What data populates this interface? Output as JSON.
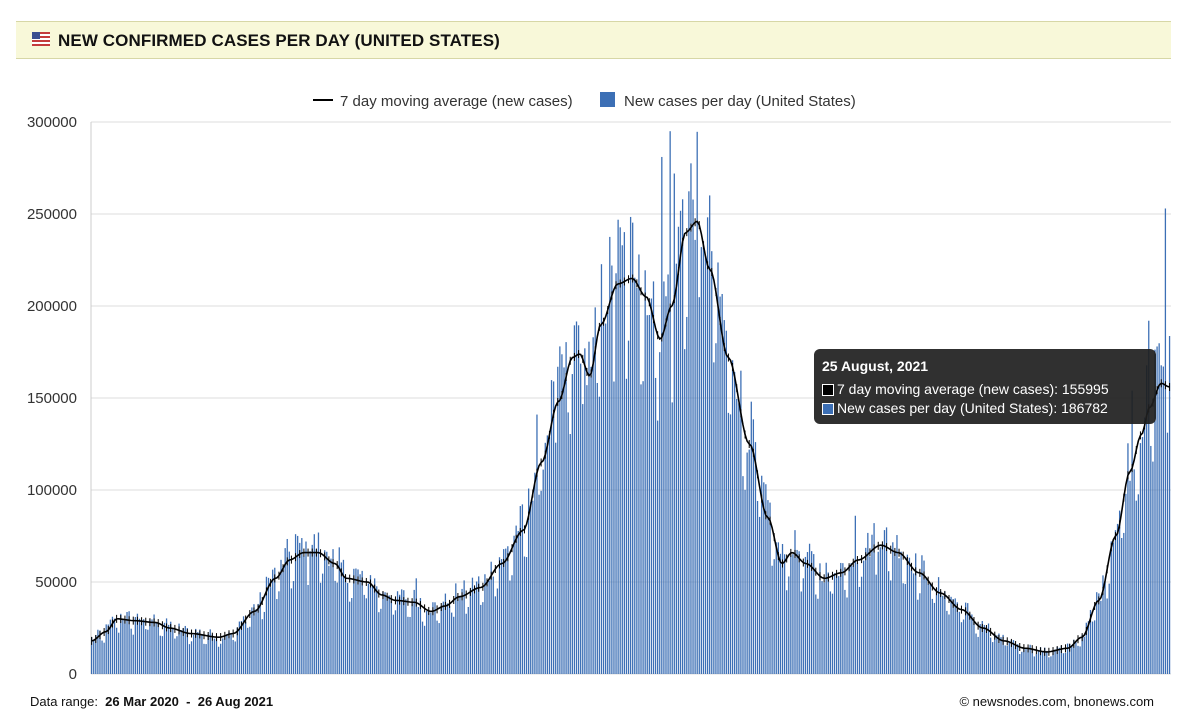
{
  "header": {
    "title": "NEW CONFIRMED CASES PER DAY (UNITED STATES)",
    "flag_icon": "us-flag-icon"
  },
  "footer": {
    "range_label": "Data range:",
    "range_start": "26 Mar 2020",
    "range_sep": "-",
    "range_end": "26 Aug 2021",
    "copyright": "© newsnodes.com, bnonews.com"
  },
  "tooltip": {
    "date": "25 August, 2021",
    "avg_label": "7 day moving average (new cases): 155995",
    "daily_label": "New cases per day (United States): 186782"
  },
  "colors": {
    "bar": "#3c6fb5",
    "line": "#000000",
    "grid": "#dddddd",
    "header_bg": "#f8f8d9"
  },
  "chart_data": {
    "type": "bar+line",
    "title": "NEW CONFIRMED CASES PER DAY (UNITED STATES)",
    "xlabel": "",
    "ylabel": "",
    "ylim": [
      0,
      300000
    ],
    "yticks": [
      0,
      50000,
      100000,
      150000,
      200000,
      250000,
      300000
    ],
    "ytick_labels": [
      "0",
      "50000",
      "100000",
      "150000",
      "200000",
      "250000",
      "300000"
    ],
    "x_range": [
      "26 Mar 2020",
      "26 Aug 2021"
    ],
    "legend": [
      {
        "name": "7 day moving average (new cases)",
        "kind": "line"
      },
      {
        "name": "New cases per day (United States)",
        "kind": "bar"
      }
    ],
    "legend_position": "top-center",
    "bar_count": 519,
    "avg_keypoints": [
      [
        0,
        18000
      ],
      [
        10,
        23000
      ],
      [
        18,
        30000
      ],
      [
        30,
        29000
      ],
      [
        45,
        28000
      ],
      [
        55,
        25000
      ],
      [
        70,
        22000
      ],
      [
        90,
        20000
      ],
      [
        100,
        22000
      ],
      [
        115,
        34000
      ],
      [
        130,
        52000
      ],
      [
        140,
        62000
      ],
      [
        150,
        66000
      ],
      [
        160,
        66000
      ],
      [
        172,
        60000
      ],
      [
        180,
        52000
      ],
      [
        195,
        50000
      ],
      [
        205,
        43000
      ],
      [
        215,
        40000
      ],
      [
        228,
        39000
      ],
      [
        240,
        34000
      ],
      [
        250,
        37000
      ],
      [
        260,
        42000
      ],
      [
        275,
        47000
      ],
      [
        290,
        60000
      ],
      [
        305,
        78000
      ],
      [
        318,
        115000
      ],
      [
        330,
        148000
      ],
      [
        340,
        172000
      ],
      [
        345,
        174000
      ],
      [
        352,
        162000
      ],
      [
        360,
        190000
      ],
      [
        372,
        212000
      ],
      [
        382,
        215000
      ],
      [
        392,
        205000
      ],
      [
        402,
        182000
      ],
      [
        410,
        200000
      ],
      [
        420,
        240000
      ],
      [
        428,
        246000
      ],
      [
        437,
        220000
      ],
      [
        450,
        172000
      ],
      [
        465,
        125000
      ],
      [
        478,
        85000
      ],
      [
        488,
        60000
      ],
      [
        495,
        66000
      ],
      [
        505,
        60000
      ],
      [
        518,
        52000
      ],
      [
        530,
        55000
      ],
      [
        542,
        62000
      ],
      [
        558,
        70000
      ],
      [
        570,
        66000
      ],
      [
        585,
        55000
      ],
      [
        600,
        44000
      ],
      [
        615,
        35000
      ],
      [
        630,
        25000
      ],
      [
        645,
        18000
      ],
      [
        660,
        14000
      ],
      [
        675,
        12000
      ],
      [
        690,
        14000
      ],
      [
        700,
        20000
      ],
      [
        712,
        40000
      ],
      [
        724,
        75000
      ],
      [
        734,
        110000
      ],
      [
        742,
        130000
      ],
      [
        748,
        145000
      ],
      [
        756,
        158000
      ],
      [
        762,
        156000
      ]
    ],
    "bar_spikes": [
      [
        145,
        76000
      ],
      [
        152,
        72000
      ],
      [
        230,
        52000
      ],
      [
        315,
        141000
      ],
      [
        328,
        159000
      ],
      [
        340,
        163000
      ],
      [
        350,
        177000
      ],
      [
        356,
        183000
      ],
      [
        368,
        222000
      ],
      [
        376,
        233000
      ],
      [
        388,
        228000
      ],
      [
        394,
        195000
      ],
      [
        404,
        281000
      ],
      [
        409,
        295000
      ],
      [
        412,
        272000
      ],
      [
        418,
        258000
      ],
      [
        432,
        232000
      ],
      [
        540,
        86000
      ],
      [
        554,
        82000
      ],
      [
        736,
        154000
      ],
      [
        748,
        192000
      ],
      [
        754,
        178000
      ],
      [
        760,
        253000
      ],
      [
        764,
        187000
      ],
      [
        767,
        187000
      ]
    ]
  }
}
